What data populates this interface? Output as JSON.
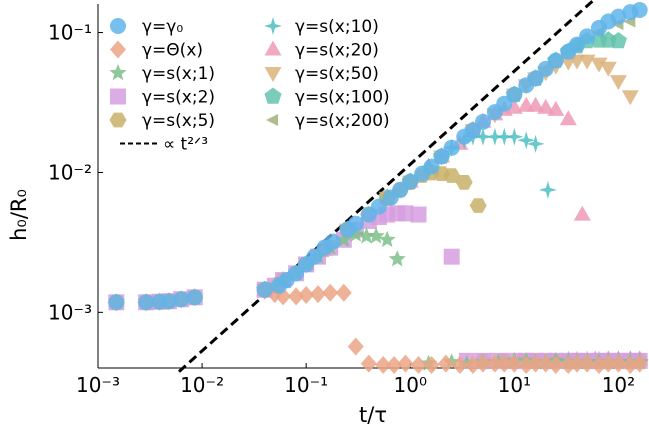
{
  "chart_data": {
    "type": "scatter",
    "xlabel": "t/τ",
    "ylabel": "h₀/R₀",
    "x_scale": "log",
    "y_scale": "log",
    "xlim": [
      0.001,
      180
    ],
    "ylim": [
      0.0004,
      0.16
    ],
    "x_ticks": [
      {
        "value": 0.001,
        "label": "10⁻³"
      },
      {
        "value": 0.01,
        "label": "10⁻²"
      },
      {
        "value": 0.1,
        "label": "10⁻¹"
      },
      {
        "value": 1,
        "label": "10⁰"
      },
      {
        "value": 10,
        "label": "10¹"
      },
      {
        "value": 100,
        "label": "10²"
      }
    ],
    "y_ticks": [
      {
        "value": 0.001,
        "label": "10⁻³"
      },
      {
        "value": 0.01,
        "label": "10⁻²"
      },
      {
        "value": 0.1,
        "label": "10⁻¹"
      }
    ],
    "grid": false,
    "legend_position": "top-left",
    "reference_line": {
      "name": "∝ t²ᐟ³",
      "color": "#000000",
      "style": "dashed",
      "exponent": 0.6667,
      "x_range": [
        0.006,
        70
      ],
      "anchor": {
        "x": 0.05,
        "y": 0.00155
      }
    },
    "series": [
      {
        "name": "γ=γ₀",
        "marker": "circle",
        "color": "#5fb4ea",
        "x": [
          0.0015,
          0.0029,
          0.0039,
          0.0048,
          0.0063,
          0.0085,
          0.04,
          0.055,
          0.065,
          0.08,
          0.1,
          0.12,
          0.15,
          0.18,
          0.25,
          0.3,
          0.4,
          0.5,
          0.65,
          0.8,
          1,
          1.3,
          1.6,
          2,
          2.5,
          3.3,
          4,
          5,
          6.5,
          8,
          10,
          13,
          16,
          20,
          25,
          33,
          40,
          50,
          65,
          80,
          100,
          130,
          160
        ],
        "y": [
          0.00118,
          0.00118,
          0.00119,
          0.0012,
          0.00124,
          0.00128,
          0.00145,
          0.00155,
          0.0017,
          0.0019,
          0.0022,
          0.0025,
          0.0029,
          0.0032,
          0.0039,
          0.0043,
          0.005,
          0.0057,
          0.0066,
          0.0075,
          0.0086,
          0.0098,
          0.011,
          0.013,
          0.015,
          0.018,
          0.02,
          0.023,
          0.027,
          0.031,
          0.036,
          0.042,
          0.047,
          0.055,
          0.063,
          0.073,
          0.082,
          0.094,
          0.108,
          0.12,
          0.13,
          0.14,
          0.145
        ]
      },
      {
        "name": "γ=Θ(x)",
        "marker": "diamond",
        "color": "#eaa585",
        "x": [
          0.0015,
          0.0029,
          0.0039,
          0.0048,
          0.0063,
          0.0085,
          0.04,
          0.05,
          0.06,
          0.08,
          0.1,
          0.13,
          0.17,
          0.23,
          0.3,
          0.4,
          0.55,
          0.7,
          0.9,
          1.2,
          1.6,
          2.2,
          3,
          4,
          5,
          6.5,
          8,
          10,
          13,
          16,
          20,
          25,
          33,
          40,
          50,
          65,
          80,
          100,
          130,
          160
        ],
        "y": [
          0.00118,
          0.00118,
          0.00119,
          0.0012,
          0.00124,
          0.00128,
          0.00143,
          0.00135,
          0.0013,
          0.0013,
          0.00133,
          0.00135,
          0.00138,
          0.00138,
          0.00057,
          0.00043,
          0.00042,
          0.00042,
          0.00043,
          0.00042,
          0.00042,
          0.00043,
          0.00042,
          0.00042,
          0.00043,
          0.00043,
          0.00043,
          0.00043,
          0.00042,
          0.00043,
          0.00043,
          0.00042,
          0.00042,
          0.00043,
          0.00043,
          0.00042,
          0.00043,
          0.00043,
          0.00042,
          0.00043
        ]
      },
      {
        "name": "γ=s(x;1)",
        "marker": "star",
        "color": "#7fbf8a",
        "x": [
          0.0015,
          0.0029,
          0.0039,
          0.0048,
          0.0063,
          0.0085,
          0.04,
          0.05,
          0.06,
          0.08,
          0.1,
          0.13,
          0.17,
          0.23,
          0.3,
          0.38,
          0.47,
          0.6,
          0.75,
          1.5,
          2.5,
          3.5,
          5,
          7,
          10,
          13,
          16,
          20,
          25,
          33,
          40,
          50,
          65,
          80,
          100,
          130,
          160
        ],
        "y": [
          0.00118,
          0.00118,
          0.00119,
          0.0012,
          0.00124,
          0.00128,
          0.00145,
          0.00155,
          0.0017,
          0.0019,
          0.0022,
          0.0025,
          0.0029,
          0.0033,
          0.0036,
          0.0035,
          0.0035,
          0.0033,
          0.0024,
          0.00043,
          0.00044,
          0.00043,
          0.00044,
          0.00044,
          0.00045,
          0.00045,
          0.00044,
          0.00044,
          0.00045,
          0.00044,
          0.00044,
          0.00044,
          0.00044,
          0.00044,
          0.00044,
          0.00044,
          0.00044
        ]
      },
      {
        "name": "γ=s(x;2)",
        "marker": "square",
        "color": "#d69fe1",
        "x": [
          0.0015,
          0.0029,
          0.0039,
          0.0048,
          0.0063,
          0.0085,
          0.04,
          0.05,
          0.06,
          0.08,
          0.1,
          0.13,
          0.17,
          0.23,
          0.3,
          0.4,
          0.5,
          0.6,
          0.75,
          0.9,
          1.2,
          2.5,
          3.5,
          5,
          7,
          10,
          13,
          16,
          20,
          25,
          33,
          40,
          50,
          65,
          80,
          100,
          130,
          160
        ],
        "y": [
          0.00118,
          0.00118,
          0.00119,
          0.0012,
          0.00124,
          0.00128,
          0.00145,
          0.00155,
          0.0017,
          0.0019,
          0.0022,
          0.0025,
          0.0029,
          0.0033,
          0.0039,
          0.0045,
          0.0048,
          0.005,
          0.0051,
          0.0051,
          0.005,
          0.0025,
          0.00045,
          0.00045,
          0.00045,
          0.00045,
          0.00045,
          0.00045,
          0.00045,
          0.00045,
          0.00045,
          0.00045,
          0.00045,
          0.00045,
          0.00045,
          0.00045,
          0.00045,
          0.00045
        ]
      },
      {
        "name": "γ=s(x;5)",
        "marker": "hexagon",
        "color": "#c9b06a",
        "x": [
          0.0015,
          0.0029,
          0.0039,
          0.0048,
          0.0063,
          0.0085,
          0.04,
          0.06,
          0.1,
          0.15,
          0.25,
          0.4,
          0.6,
          0.8,
          1,
          1.3,
          1.6,
          2,
          2.5,
          3.3,
          4.5,
          5,
          8,
          12,
          16,
          20,
          25,
          33,
          40,
          50,
          65,
          80,
          100,
          130,
          160
        ],
        "y": [
          0.00118,
          0.00118,
          0.00119,
          0.0012,
          0.00124,
          0.00128,
          0.00145,
          0.0017,
          0.0022,
          0.0028,
          0.0039,
          0.005,
          0.0065,
          0.0075,
          0.0085,
          0.0095,
          0.0099,
          0.0098,
          0.0095,
          0.0085,
          0.0058,
          0.00045,
          0.00045,
          0.00045,
          0.00045,
          0.00045,
          0.00045,
          0.00045,
          0.00045,
          0.00045,
          0.00045,
          0.00045,
          0.00045,
          0.00045,
          0.00045
        ]
      },
      {
        "name": "γ=s(x;10)",
        "marker": "star4",
        "color": "#4ebfc4",
        "x": [
          0.0015,
          0.0029,
          0.0039,
          0.0048,
          0.0063,
          0.0085,
          0.04,
          0.06,
          0.1,
          0.15,
          0.25,
          0.4,
          0.6,
          0.8,
          1,
          1.5,
          2,
          2.5,
          3.3,
          4,
          5,
          6.5,
          8,
          10,
          13,
          16,
          21,
          33,
          40,
          50,
          65,
          80,
          100,
          130,
          160
        ],
        "y": [
          0.00118,
          0.00118,
          0.00119,
          0.0012,
          0.00124,
          0.00128,
          0.00145,
          0.0017,
          0.0022,
          0.0028,
          0.0039,
          0.005,
          0.0066,
          0.0075,
          0.0086,
          0.011,
          0.013,
          0.015,
          0.017,
          0.018,
          0.018,
          0.018,
          0.018,
          0.018,
          0.017,
          0.016,
          0.0075,
          0.00046,
          0.00046,
          0.00046,
          0.00046,
          0.00046,
          0.00046,
          0.00046,
          0.00046
        ]
      },
      {
        "name": "γ=s(x;20)",
        "marker": "triangle-up",
        "color": "#ee9ab6",
        "x": [
          0.04,
          0.06,
          0.1,
          0.15,
          0.25,
          0.4,
          0.6,
          1,
          1.5,
          2,
          3,
          4,
          5,
          6.5,
          8,
          10,
          13,
          16,
          20,
          25,
          33,
          45,
          60,
          80,
          100,
          130,
          160
        ],
        "y": [
          0.00145,
          0.0017,
          0.0022,
          0.0028,
          0.0039,
          0.005,
          0.0066,
          0.0086,
          0.011,
          0.013,
          0.016,
          0.02,
          0.023,
          0.026,
          0.028,
          0.029,
          0.03,
          0.03,
          0.029,
          0.028,
          0.024,
          0.005,
          0.00046,
          0.00046,
          0.00046,
          0.00046,
          0.00046
        ]
      },
      {
        "name": "γ=s(x;50)",
        "marker": "triangle-down",
        "color": "#dcb37c",
        "x": [
          0.04,
          0.1,
          0.25,
          0.6,
          1,
          2,
          4,
          6.5,
          10,
          13,
          16,
          20,
          25,
          33,
          40,
          50,
          65,
          80,
          100,
          130
        ],
        "y": [
          0.00145,
          0.0022,
          0.0039,
          0.0066,
          0.0086,
          0.013,
          0.02,
          0.026,
          0.036,
          0.042,
          0.047,
          0.052,
          0.058,
          0.062,
          0.063,
          0.063,
          0.06,
          0.056,
          0.045,
          0.035
        ]
      },
      {
        "name": "γ=s(x;100)",
        "marker": "pentagon",
        "color": "#64c3ad",
        "x": [
          0.04,
          0.1,
          0.25,
          0.6,
          1,
          2,
          4,
          10,
          16,
          25,
          33,
          40,
          50,
          65,
          80,
          100
        ],
        "y": [
          0.00145,
          0.0022,
          0.0039,
          0.0066,
          0.0086,
          0.013,
          0.02,
          0.036,
          0.047,
          0.063,
          0.073,
          0.08,
          0.087,
          0.088,
          0.088,
          0.087
        ]
      },
      {
        "name": "γ=s(x;200)",
        "marker": "triangle-left",
        "color": "#a2b07c",
        "x": [
          0.04,
          0.1,
          0.25,
          0.6,
          1,
          2,
          4,
          10,
          20,
          40,
          65,
          100,
          130
        ],
        "y": [
          0.00145,
          0.0022,
          0.0039,
          0.0066,
          0.0086,
          0.013,
          0.02,
          0.036,
          0.055,
          0.08,
          0.1,
          0.115,
          0.12
        ]
      }
    ]
  }
}
